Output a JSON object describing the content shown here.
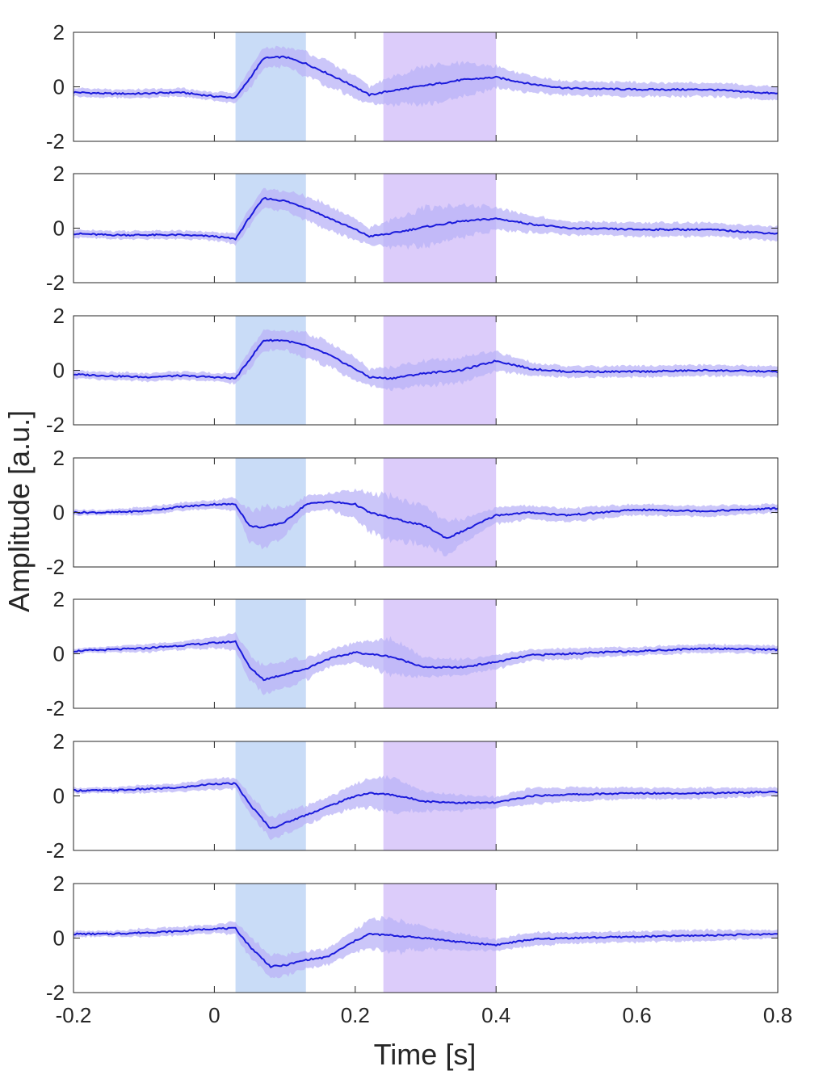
{
  "chart_data": {
    "type": "line",
    "ylabel": "Amplitude [a.u.]",
    "xlabel": "Time [s]",
    "xlim": [
      -0.2,
      0.8
    ],
    "ylim": [
      -2,
      2
    ],
    "xticks": [
      -0.2,
      0,
      0.2,
      0.4,
      0.6,
      0.8
    ],
    "xtick_labels": [
      "-0.2",
      "0",
      "0.2",
      "0.4",
      "0.6",
      "0.8"
    ],
    "yticks": [
      -2,
      0,
      2
    ],
    "ytick_labels": [
      "-2",
      "0",
      "2"
    ],
    "colors": {
      "mean_line": "#1a1adb",
      "error_band": "#b9b3f7",
      "window_early": "#c9dcf7",
      "window_late": "#dcccfa",
      "axes": "#262626"
    },
    "shaded_windows": [
      {
        "x": [
          0.03,
          0.13
        ],
        "color": "#c9dcf7"
      },
      {
        "x": [
          0.24,
          0.4
        ],
        "color": "#dcccfa"
      }
    ],
    "panels": [
      {
        "x": [
          -0.2,
          -0.15,
          -0.1,
          -0.05,
          0,
          0.03,
          0.05,
          0.07,
          0.1,
          0.13,
          0.16,
          0.2,
          0.22,
          0.25,
          0.3,
          0.35,
          0.4,
          0.45,
          0.5,
          0.6,
          0.7,
          0.8
        ],
        "mean": [
          -0.2,
          -0.25,
          -0.25,
          -0.2,
          -0.35,
          -0.4,
          0.3,
          1.05,
          1.1,
          0.85,
          0.5,
          0.0,
          -0.3,
          -0.15,
          0.05,
          0.25,
          0.35,
          0.1,
          -0.05,
          -0.1,
          -0.1,
          -0.25
        ],
        "spread": [
          0.15,
          0.15,
          0.15,
          0.15,
          0.15,
          0.2,
          0.35,
          0.35,
          0.35,
          0.45,
          0.45,
          0.4,
          0.3,
          0.5,
          0.7,
          0.6,
          0.4,
          0.3,
          0.25,
          0.25,
          0.25,
          0.25
        ]
      },
      {
        "x": [
          -0.2,
          -0.15,
          -0.1,
          -0.05,
          0,
          0.03,
          0.05,
          0.07,
          0.1,
          0.13,
          0.16,
          0.2,
          0.22,
          0.25,
          0.3,
          0.35,
          0.4,
          0.45,
          0.5,
          0.6,
          0.7,
          0.8
        ],
        "mean": [
          -0.2,
          -0.25,
          -0.25,
          -0.25,
          -0.3,
          -0.4,
          0.4,
          1.1,
          1.0,
          0.75,
          0.4,
          -0.05,
          -0.3,
          -0.2,
          0.05,
          0.25,
          0.35,
          0.15,
          0.0,
          -0.05,
          -0.05,
          -0.2
        ],
        "spread": [
          0.15,
          0.15,
          0.15,
          0.15,
          0.15,
          0.2,
          0.35,
          0.35,
          0.35,
          0.45,
          0.45,
          0.4,
          0.3,
          0.5,
          0.7,
          0.6,
          0.4,
          0.3,
          0.25,
          0.25,
          0.25,
          0.25
        ]
      },
      {
        "x": [
          -0.2,
          -0.15,
          -0.1,
          -0.05,
          0,
          0.03,
          0.05,
          0.07,
          0.1,
          0.13,
          0.16,
          0.2,
          0.22,
          0.25,
          0.3,
          0.35,
          0.4,
          0.45,
          0.5,
          0.6,
          0.7,
          0.8
        ],
        "mean": [
          -0.15,
          -0.2,
          -0.25,
          -0.2,
          -0.25,
          -0.3,
          0.4,
          1.1,
          1.1,
          0.9,
          0.6,
          0.05,
          -0.25,
          -0.3,
          -0.1,
          0.0,
          0.35,
          0.05,
          -0.05,
          -0.05,
          0.0,
          -0.05
        ],
        "spread": [
          0.15,
          0.15,
          0.15,
          0.15,
          0.15,
          0.2,
          0.35,
          0.35,
          0.35,
          0.45,
          0.45,
          0.4,
          0.3,
          0.4,
          0.45,
          0.45,
          0.35,
          0.25,
          0.2,
          0.2,
          0.2,
          0.2
        ]
      },
      {
        "x": [
          -0.2,
          -0.15,
          -0.1,
          -0.05,
          0,
          0.03,
          0.05,
          0.07,
          0.1,
          0.13,
          0.16,
          0.2,
          0.22,
          0.25,
          0.3,
          0.33,
          0.36,
          0.4,
          0.45,
          0.5,
          0.6,
          0.7,
          0.8
        ],
        "mean": [
          0.0,
          0.0,
          0.05,
          0.2,
          0.3,
          0.3,
          -0.5,
          -0.55,
          -0.35,
          0.3,
          0.4,
          0.3,
          0.0,
          -0.2,
          -0.5,
          -0.95,
          -0.6,
          -0.1,
          0.0,
          -0.1,
          0.1,
          0.05,
          0.15
        ],
        "spread": [
          0.1,
          0.1,
          0.15,
          0.15,
          0.15,
          0.25,
          0.6,
          0.75,
          0.5,
          0.3,
          0.3,
          0.5,
          0.7,
          0.8,
          0.7,
          0.6,
          0.4,
          0.3,
          0.25,
          0.25,
          0.2,
          0.2,
          0.15
        ]
      },
      {
        "x": [
          -0.2,
          -0.15,
          -0.1,
          -0.05,
          0,
          0.03,
          0.05,
          0.07,
          0.1,
          0.13,
          0.16,
          0.2,
          0.25,
          0.3,
          0.35,
          0.4,
          0.45,
          0.5,
          0.6,
          0.7,
          0.8
        ],
        "mean": [
          0.1,
          0.15,
          0.2,
          0.3,
          0.4,
          0.45,
          -0.5,
          -0.95,
          -0.75,
          -0.55,
          -0.2,
          0.05,
          -0.1,
          -0.5,
          -0.5,
          -0.3,
          -0.05,
          0.0,
          0.1,
          0.2,
          0.15
        ],
        "spread": [
          0.1,
          0.1,
          0.15,
          0.15,
          0.2,
          0.3,
          0.45,
          0.5,
          0.5,
          0.4,
          0.3,
          0.35,
          0.65,
          0.35,
          0.3,
          0.25,
          0.2,
          0.2,
          0.15,
          0.15,
          0.15
        ]
      },
      {
        "x": [
          -0.2,
          -0.15,
          -0.1,
          -0.05,
          0,
          0.03,
          0.05,
          0.08,
          0.1,
          0.13,
          0.16,
          0.2,
          0.22,
          0.25,
          0.3,
          0.35,
          0.4,
          0.45,
          0.5,
          0.6,
          0.7,
          0.8
        ],
        "mean": [
          0.2,
          0.2,
          0.25,
          0.3,
          0.45,
          0.45,
          -0.3,
          -1.2,
          -1.0,
          -0.7,
          -0.4,
          0.0,
          0.1,
          0.05,
          -0.2,
          -0.25,
          -0.25,
          0.0,
          0.05,
          0.1,
          0.1,
          0.15
        ],
        "spread": [
          0.1,
          0.1,
          0.15,
          0.15,
          0.2,
          0.2,
          0.35,
          0.4,
          0.4,
          0.35,
          0.35,
          0.45,
          0.55,
          0.65,
          0.35,
          0.3,
          0.2,
          0.3,
          0.25,
          0.2,
          0.2,
          0.15
        ]
      },
      {
        "x": [
          -0.2,
          -0.15,
          -0.1,
          -0.05,
          0,
          0.03,
          0.05,
          0.08,
          0.1,
          0.13,
          0.16,
          0.2,
          0.22,
          0.25,
          0.3,
          0.35,
          0.4,
          0.45,
          0.5,
          0.6,
          0.7,
          0.8
        ],
        "mean": [
          0.15,
          0.15,
          0.2,
          0.25,
          0.35,
          0.35,
          -0.3,
          -1.05,
          -1.0,
          -0.8,
          -0.7,
          -0.1,
          0.15,
          0.1,
          0.0,
          -0.15,
          -0.25,
          -0.05,
          0.0,
          0.05,
          0.1,
          0.15
        ],
        "spread": [
          0.1,
          0.1,
          0.15,
          0.15,
          0.15,
          0.25,
          0.4,
          0.4,
          0.4,
          0.3,
          0.3,
          0.4,
          0.5,
          0.65,
          0.4,
          0.3,
          0.2,
          0.25,
          0.2,
          0.2,
          0.2,
          0.15
        ]
      }
    ]
  }
}
